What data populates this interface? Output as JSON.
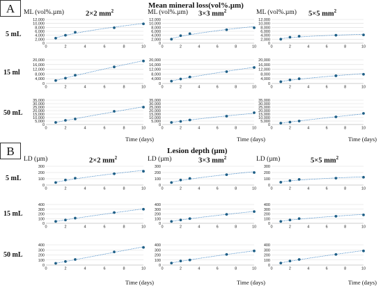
{
  "panels": [
    {
      "letter": "A",
      "title": "Mean mineral loss(vol%.µm)",
      "unit": "ML (vol%.µm)"
    },
    {
      "letter": "B",
      "title": "Lesion depth (µm)",
      "unit": "LD (µm)"
    }
  ],
  "columns": [
    {
      "label": "2×2 mm",
      "sup": "2"
    },
    {
      "label": "3×3 mm",
      "sup": "2"
    },
    {
      "label": "5×5 mm",
      "sup": "2"
    }
  ],
  "rows": [
    "5 mL",
    "15 ml",
    "50 mL"
  ],
  "rows_b": [
    "5 mL",
    "15 mL",
    "50 mL"
  ],
  "xcaption": "Time (days)",
  "style": {
    "marker_color": "#1f5f86",
    "line_color": "#2f7cc0",
    "grid_color": "#d9d9d9"
  },
  "chart_data": [
    {
      "type": "line",
      "panel": "A",
      "row": "5 mL",
      "column": "2×2 mm",
      "x": [
        1,
        2,
        3,
        7,
        10
      ],
      "values": [
        2500,
        4000,
        5500,
        7800,
        9800
      ],
      "ylim": [
        0,
        12000
      ],
      "yticks": [
        "0",
        "2,000",
        "4,000",
        "6,000",
        "8,000",
        "10,000",
        "12,000"
      ],
      "xticks": [
        0,
        2,
        4,
        6,
        8,
        10
      ]
    },
    {
      "type": "line",
      "panel": "A",
      "row": "5 mL",
      "column": "3×3 mm",
      "x": [
        1,
        2,
        3,
        7,
        10
      ],
      "values": [
        2000,
        3800,
        4800,
        6800,
        7800
      ],
      "ylim": [
        0,
        12000
      ],
      "yticks": [
        "0",
        "2,000",
        "4,000",
        "6,000",
        "8,000",
        "10,000",
        "12,000"
      ],
      "xticks": [
        0,
        2,
        4,
        6,
        8,
        10
      ]
    },
    {
      "type": "line",
      "panel": "A",
      "row": "5 mL",
      "column": "5×5 mm",
      "x": [
        1,
        2,
        3,
        7,
        10
      ],
      "values": [
        2000,
        3000,
        3500,
        4000,
        4200
      ],
      "ylim": [
        0,
        12000
      ],
      "yticks": [
        "0",
        "2,000",
        "4,000",
        "6,000",
        "8,000",
        "10,000",
        "12,000"
      ],
      "xticks": [
        0,
        2,
        4,
        6,
        8,
        10
      ]
    },
    {
      "type": "line",
      "panel": "A",
      "row": "15 ml",
      "column": "2×2 mm",
      "x": [
        1,
        2,
        3,
        7,
        10
      ],
      "values": [
        2500,
        4500,
        7000,
        14000,
        19000
      ],
      "ylim": [
        0,
        20000
      ],
      "yticks": [
        "0",
        "4,000",
        "8,000",
        "12,000",
        "16,000",
        "20,000"
      ],
      "xticks": [
        0,
        2,
        4,
        6,
        8,
        10
      ]
    },
    {
      "type": "line",
      "panel": "A",
      "row": "15 ml",
      "column": "3×3 mm",
      "x": [
        1,
        2,
        3,
        7,
        10
      ],
      "values": [
        2000,
        3800,
        5500,
        10000,
        13500
      ],
      "ylim": [
        0,
        20000
      ],
      "yticks": [
        "0",
        "4,000",
        "8,000",
        "12,000",
        "16,000",
        "20,000"
      ],
      "xticks": [
        0,
        2,
        4,
        6,
        8,
        10
      ]
    },
    {
      "type": "line",
      "panel": "A",
      "row": "15 ml",
      "column": "5×5 mm",
      "x": [
        1,
        2,
        3,
        7,
        10
      ],
      "values": [
        1500,
        3000,
        4000,
        6500,
        7800
      ],
      "ylim": [
        0,
        20000
      ],
      "yticks": [
        "0",
        "4,000",
        "8,000",
        "12,000",
        "16,000",
        "20,000"
      ],
      "xticks": [
        0,
        2,
        4,
        6,
        8,
        10
      ]
    },
    {
      "type": "line",
      "panel": "A",
      "row": "50 mL",
      "column": "2×2 mm",
      "x": [
        1,
        2,
        3,
        7,
        10
      ],
      "values": [
        3000,
        6000,
        8000,
        19000,
        25000
      ],
      "ylim": [
        0,
        35000
      ],
      "yticks": [
        "0",
        "5,000",
        "10,000",
        "15,000",
        "20,000",
        "25,000",
        "30,000",
        "35,000"
      ],
      "xticks": [
        0,
        2,
        4,
        6,
        8,
        10
      ]
    },
    {
      "type": "line",
      "panel": "A",
      "row": "50 mL",
      "column": "3×3 mm",
      "x": [
        1,
        2,
        3,
        7,
        10
      ],
      "values": [
        3000,
        4500,
        6500,
        12000,
        17000
      ],
      "ylim": [
        0,
        35000
      ],
      "yticks": [
        "0",
        "5,000",
        "10,000",
        "15,000",
        "20,000",
        "25,000",
        "30,000",
        "35,000"
      ],
      "xticks": [
        0,
        2,
        4,
        6,
        8,
        10
      ]
    },
    {
      "type": "line",
      "panel": "A",
      "row": "50 mL",
      "column": "5×5 mm",
      "x": [
        1,
        2,
        3,
        7,
        10
      ],
      "values": [
        2000,
        3500,
        5000,
        11000,
        16000
      ],
      "ylim": [
        0,
        35000
      ],
      "yticks": [
        "0",
        "5,000",
        "10,000",
        "15,000",
        "20,000",
        "25,000",
        "30,000",
        "35,000"
      ],
      "xticks": [
        0,
        2,
        4,
        6,
        8,
        10
      ]
    },
    {
      "type": "line",
      "panel": "B",
      "row": "5 mL",
      "column": "2×2 mm",
      "x": [
        1,
        2,
        3,
        7,
        10
      ],
      "values": [
        40,
        80,
        110,
        180,
        220
      ],
      "ylim": [
        0,
        300
      ],
      "yticks": [
        "0",
        "100",
        "200",
        "300"
      ],
      "xticks": [
        0,
        2,
        4,
        6,
        8,
        10
      ]
    },
    {
      "type": "line",
      "panel": "B",
      "row": "5 mL",
      "column": "3×3 mm",
      "x": [
        1,
        2,
        3,
        7,
        10
      ],
      "values": [
        40,
        80,
        105,
        165,
        200
      ],
      "ylim": [
        0,
        300
      ],
      "yticks": [
        "0",
        "100",
        "200",
        "300"
      ],
      "xticks": [
        0,
        2,
        4,
        6,
        8,
        10
      ]
    },
    {
      "type": "line",
      "panel": "B",
      "row": "5 mL",
      "column": "5×5 mm",
      "x": [
        1,
        2,
        3,
        7,
        10
      ],
      "values": [
        45,
        70,
        90,
        110,
        125
      ],
      "ylim": [
        0,
        300
      ],
      "yticks": [
        "0",
        "100",
        "200",
        "300"
      ],
      "xticks": [
        0,
        2,
        4,
        6,
        8,
        10
      ]
    },
    {
      "type": "line",
      "panel": "B",
      "row": "15 mL",
      "column": "2×2 mm",
      "x": [
        1,
        2,
        3,
        7,
        10
      ],
      "values": [
        40,
        70,
        110,
        230,
        300
      ],
      "ylim": [
        0,
        400
      ],
      "yticks": [
        "0",
        "100",
        "200",
        "300",
        "400"
      ],
      "xticks": [
        0,
        2,
        4,
        6,
        8,
        10
      ]
    },
    {
      "type": "line",
      "panel": "B",
      "row": "15 mL",
      "column": "3×3 mm",
      "x": [
        1,
        2,
        3,
        7,
        10
      ],
      "values": [
        40,
        70,
        100,
        190,
        250
      ],
      "ylim": [
        0,
        400
      ],
      "yticks": [
        "0",
        "100",
        "200",
        "300",
        "400"
      ],
      "xticks": [
        0,
        2,
        4,
        6,
        8,
        10
      ]
    },
    {
      "type": "line",
      "panel": "B",
      "row": "15 mL",
      "column": "5×5 mm",
      "x": [
        1,
        2,
        3,
        7,
        10
      ],
      "values": [
        40,
        70,
        100,
        150,
        180
      ],
      "ylim": [
        0,
        400
      ],
      "yticks": [
        "0",
        "100",
        "200",
        "300",
        "400"
      ],
      "xticks": [
        0,
        2,
        4,
        6,
        8,
        10
      ]
    },
    {
      "type": "line",
      "panel": "B",
      "row": "50 mL",
      "column": "2×2 mm",
      "x": [
        1,
        2,
        3,
        7,
        10
      ],
      "values": [
        35,
        70,
        110,
        260,
        350
      ],
      "ylim": [
        0,
        400
      ],
      "yticks": [
        "0",
        "100",
        "200",
        "300",
        "400"
      ],
      "xticks": [
        0,
        2,
        4,
        6,
        8,
        10
      ]
    },
    {
      "type": "line",
      "panel": "B",
      "row": "50 mL",
      "column": "3×3 mm",
      "x": [
        1,
        2,
        3,
        7,
        10
      ],
      "values": [
        40,
        80,
        100,
        210,
        280
      ],
      "ylim": [
        0,
        400
      ],
      "yticks": [
        "0",
        "100",
        "200",
        "300",
        "400"
      ],
      "xticks": [
        0,
        2,
        4,
        6,
        8,
        10
      ]
    },
    {
      "type": "line",
      "panel": "B",
      "row": "50 mL",
      "column": "5×5 mm",
      "x": [
        1,
        2,
        3,
        7,
        10
      ],
      "values": [
        40,
        80,
        110,
        210,
        280
      ],
      "ylim": [
        0,
        400
      ],
      "yticks": [
        "0",
        "100",
        "200",
        "300",
        "400"
      ],
      "xticks": [
        0,
        2,
        4,
        6,
        8,
        10
      ]
    }
  ]
}
